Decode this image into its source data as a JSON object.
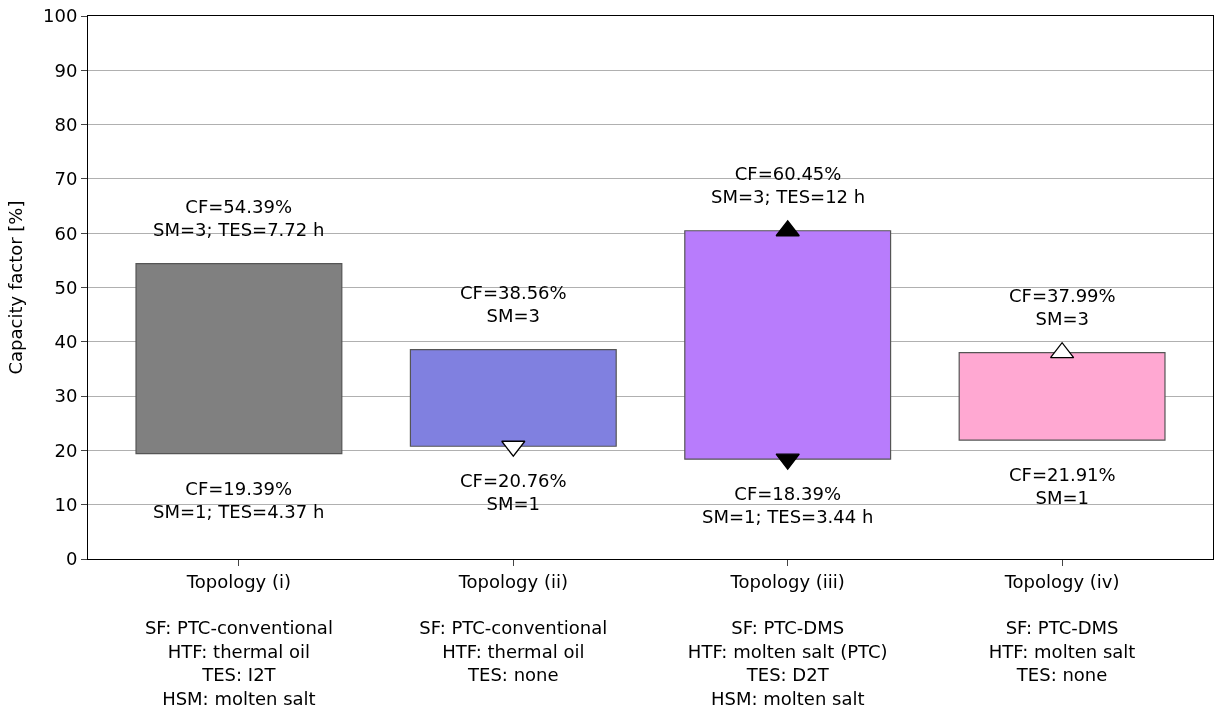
{
  "chart_data": {
    "type": "bar",
    "ylabel": "Capacity factor [%]",
    "categories": [
      "Topology (i)\n\nSF: PTC-conventional\nHTF: thermal oil\nTES: I2T\nHSM: molten salt",
      "Topology (ii)\n\nSF: PTC-conventional\nHTF: thermal oil\nTES: none",
      "Topology (iii)\n\nSF: PTC-DMS\nHTF: molten salt (PTC)\nTES: D2T\nHSM: molten salt",
      "Topology (iv)\n\nSF: PTC-DMS\nHTF: molten salt\nTES: none"
    ],
    "base": [
      19.39,
      20.76,
      18.39,
      21.91
    ],
    "values": [
      35.0,
      17.8,
      42.06,
      16.08
    ],
    "colors": [
      "#808080",
      "#8080e0",
      "#b87cfc",
      "#ffa8d2"
    ],
    "series": [
      {
        "type": "scatter",
        "marker": "triangle-down",
        "color": "#ffffff",
        "x": [
          "Topology (ii)\n\nSF: PTC-conventional\nHTF: thermal oil\nTES: none"
        ],
        "values": [
          20.76
        ]
      },
      {
        "type": "scatter",
        "marker": "triangle-up",
        "color": "#000000",
        "x": [
          "Topology (iii)\n\nSF: PTC-DMS\nHTF: molten salt (PTC)\nTES: D2T\nHSM: molten salt"
        ],
        "values": [
          60.45
        ]
      },
      {
        "type": "scatter",
        "marker": "triangle-down",
        "color": "#000000",
        "x": [
          "Topology (iii)\n\nSF: PTC-DMS\nHTF: molten salt (PTC)\nTES: D2T\nHSM: molten salt"
        ],
        "values": [
          18.39
        ]
      },
      {
        "type": "scatter",
        "marker": "triangle-up",
        "color": "#ffffff",
        "x": [
          "Topology (iv)\n\nSF: PTC-DMS\nHTF: molten salt\nTES: none"
        ],
        "values": [
          37.99
        ]
      }
    ],
    "annotations": [
      {
        "text": "CF=54.39%\nSM=3; TES=7.72 h",
        "x": "Topology (i)\n\nSF: PTC-conventional\nHTF: thermal oil\nTES: I2T\nHSM: molten salt",
        "y": 54.39
      },
      {
        "text": "CF=19.39%\nSM=1; TES=4.37 h",
        "x": "Topology (i)\n\nSF: PTC-conventional\nHTF: thermal oil\nTES: I2T\nHSM: molten salt",
        "y": 19.39
      },
      {
        "text": "CF=38.56%\nSM=3",
        "x": "Topology (ii)\n\nSF: PTC-conventional\nHTF: thermal oil\nTES: none",
        "y": 38.56
      },
      {
        "text": "CF=20.76%\nSM=1",
        "x": "Topology (ii)\n\nSF: PTC-conventional\nHTF: thermal oil\nTES: none",
        "y": 20.76
      },
      {
        "text": "CF=60.45%\nSM=3; TES=12 h",
        "x": "Topology (iii)\n\nSF: PTC-DMS\nHTF: molten salt (PTC)\nTES: D2T\nHSM: molten salt",
        "y": 60.45
      },
      {
        "text": "CF=18.39%\nSM=1; TES=3.44 h",
        "x": "Topology (iii)\n\nSF: PTC-DMS\nHTF: molten salt (PTC)\nTES: D2T\nHSM: molten salt",
        "y": 18.39
      },
      {
        "text": "CF=37.99%\nSM=3",
        "x": "Topology (iv)\n\nSF: PTC-DMS\nHTF: molten salt\nTES: none",
        "y": 37.99
      },
      {
        "text": "CF=21.91%\nSM=1",
        "x": "Topology (iv)\n\nSF: PTC-DMS\nHTF: molten salt\nTES: none",
        "y": 21.91
      }
    ],
    "ylim": [
      0,
      100
    ],
    "yticks": [
      0,
      10,
      20,
      30,
      40,
      50,
      60,
      70,
      80,
      90,
      100
    ],
    "grid": "y"
  }
}
